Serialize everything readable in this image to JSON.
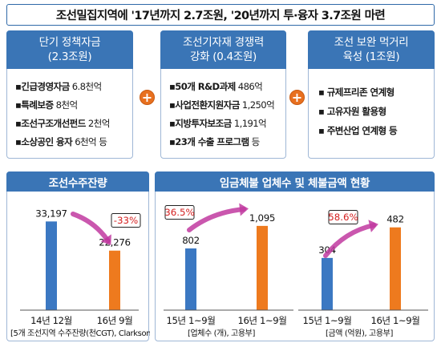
{
  "title": "조선밀집지역에 '17년까지 2.7조원, '20년까지 투·융자 3.7조원 마련",
  "panels": [
    {
      "head_line1": "단기 정책자금",
      "head_line2": "(2.3조원)",
      "items": [
        {
          "name": "긴급경영자금",
          "amount": "6.8천억"
        },
        {
          "name": "특례보증",
          "amount": "8천억"
        },
        {
          "name": "조선구조개선펀드",
          "amount": "2천억"
        },
        {
          "name": "소상공인 융자",
          "amount": "6천억 등"
        }
      ]
    },
    {
      "head_line1": "조선기자재 경쟁력",
      "head_line2": "강화 (0.4조원)",
      "items": [
        {
          "name": "50개 R&D과제",
          "amount": "486억"
        },
        {
          "name": "사업전환지원자금",
          "amount": "1,250억"
        },
        {
          "name": "지방투자보조금",
          "amount": "1,191억"
        },
        {
          "name": "23개 수출 프로그램",
          "amount": "등"
        }
      ]
    },
    {
      "head_line1": "조선 보완 먹거리",
      "head_line2": "육성 (1조원)",
      "items": [
        {
          "name": "규제프리존 연계형"
        },
        {
          "name": "고유자원 활용형"
        },
        {
          "name": "주변산업 연계형 등"
        }
      ]
    }
  ],
  "plus_symbol": "+",
  "colors": {
    "blue_bar": "#3b78c2",
    "orange_bar": "#ee7a1e",
    "arrow": "#c13aa0",
    "header": "#3a75b6",
    "percent_text": "#d42020"
  },
  "chart_data": [
    {
      "type": "bar",
      "title": "조선수주잔량",
      "categories": [
        "14년 12월",
        "16년 9월"
      ],
      "values": [
        33197,
        22276
      ],
      "value_labels": [
        "33,197",
        "22,276"
      ],
      "change_label": "-33%",
      "source": "[5개 조선지역 수주잔량(천CGT), Clarkson]",
      "ylim": [
        0,
        36000
      ]
    },
    {
      "type": "bar",
      "title": "임금체불 업체수 및 체불금액 현황",
      "groups": [
        {
          "categories": [
            "15년 1~9월",
            "16년 1~9월"
          ],
          "values": [
            802,
            1095
          ],
          "value_labels": [
            "802",
            "1,095"
          ],
          "change_label": "36.5%",
          "source": "[업체수 (개), 고용부]",
          "ylim": [
            0,
            1250
          ]
        },
        {
          "categories": [
            "15년 1~9월",
            "16년 1~9월"
          ],
          "values": [
            304,
            482
          ],
          "value_labels": [
            "304",
            "482"
          ],
          "change_label": "58.6%",
          "source": "[금액 (억원), 고용부]",
          "ylim": [
            0,
            560
          ]
        }
      ]
    }
  ]
}
